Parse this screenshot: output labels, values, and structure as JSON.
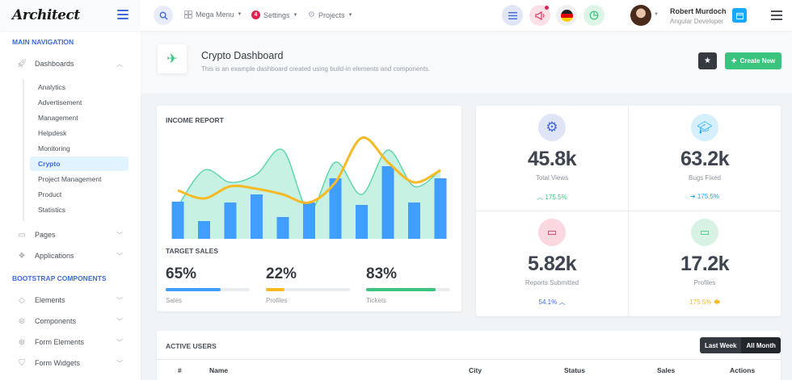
{
  "header": {
    "logo": "Architect",
    "nav": [
      {
        "label": "Mega Menu"
      },
      {
        "label": "Settings",
        "badge": "4"
      },
      {
        "label": "Projects"
      }
    ],
    "user": {
      "name": "Robert Murdoch",
      "role": "Angular Developer"
    }
  },
  "sidebar": {
    "heading_main": "Main Navigation",
    "dashboards": "Dashboards",
    "sub_items": [
      "Analytics",
      "Advertisement",
      "Management",
      "Helpdesk",
      "Monitoring",
      "Crypto",
      "Project Management",
      "Product",
      "Statistics"
    ],
    "active_item": "Crypto",
    "pages": "Pages",
    "applications": "Applications",
    "heading_bootstrap": "Bootstrap Components",
    "elements": "Elements",
    "components": "Components",
    "form_elements": "Form Elements",
    "form_widgets": "Form Widgets"
  },
  "page_title": {
    "title": "Crypto Dashboard",
    "subtitle": "This is an example dashboard created using build-in elements and components.",
    "create_label": "Create New"
  },
  "income_report": {
    "title": "Income Report",
    "chart_data": {
      "type": "bar",
      "bars": [
        46,
        22,
        45,
        55,
        27,
        45,
        75,
        42,
        90,
        45,
        75
      ],
      "area": [
        40,
        85,
        70,
        80,
        110,
        35,
        95,
        55,
        110,
        65,
        85
      ],
      "line": [
        60,
        50,
        65,
        62,
        55,
        45,
        70,
        125,
        95,
        70,
        85
      ]
    },
    "colors": {
      "bars": "#3f9eff",
      "area": "#5fd6b0",
      "line": "#f7b924"
    }
  },
  "target_sales": {
    "title": "Target Sales",
    "items": [
      {
        "value": "65%",
        "label": "Sales",
        "fill": 0.65,
        "color": "#3f9eff"
      },
      {
        "value": "22%",
        "label": "Profiles",
        "fill": 0.22,
        "color": "#f7b924"
      },
      {
        "value": "83%",
        "label": "Tickets",
        "fill": 0.83,
        "color": "#3ac47d"
      }
    ]
  },
  "stats": [
    {
      "value": "45.8k",
      "label": "Total Views",
      "trend": "175.5%",
      "trend_dir": "up",
      "trend_color": "#3ac47d",
      "icon": "gear-icon",
      "icon_bg": "#dfe5f7",
      "icon_color": "#3f6ad8"
    },
    {
      "value": "63.2k",
      "label": "Bugs Fixed",
      "trend": "175.5%",
      "trend_dir": "right",
      "trend_color": "#16aaff",
      "icon": "graduation-cap-icon",
      "icon_bg": "#d5effd",
      "icon_color": "#16aaff"
    },
    {
      "value": "5.82k",
      "label": "Reports Submitted",
      "trend": "54.1%",
      "trend_dir": "up",
      "trend_color": "#3f6ad8",
      "icon": "laptop-phone-icon",
      "icon_bg": "#fbd7e0",
      "icon_color": "#d92550"
    },
    {
      "value": "17.2k",
      "label": "Profiles",
      "trend": "175.5%",
      "trend_dir": "left",
      "trend_color": "#f7b924",
      "icon": "monitor-icon",
      "icon_bg": "#d8f3e4",
      "icon_color": "#3ac47d"
    }
  ],
  "active_users": {
    "title": "Active Users",
    "tabs": [
      "Last Week",
      "All Month"
    ],
    "columns": [
      "#",
      "Name",
      "City",
      "Status",
      "Sales",
      "Actions"
    ]
  }
}
